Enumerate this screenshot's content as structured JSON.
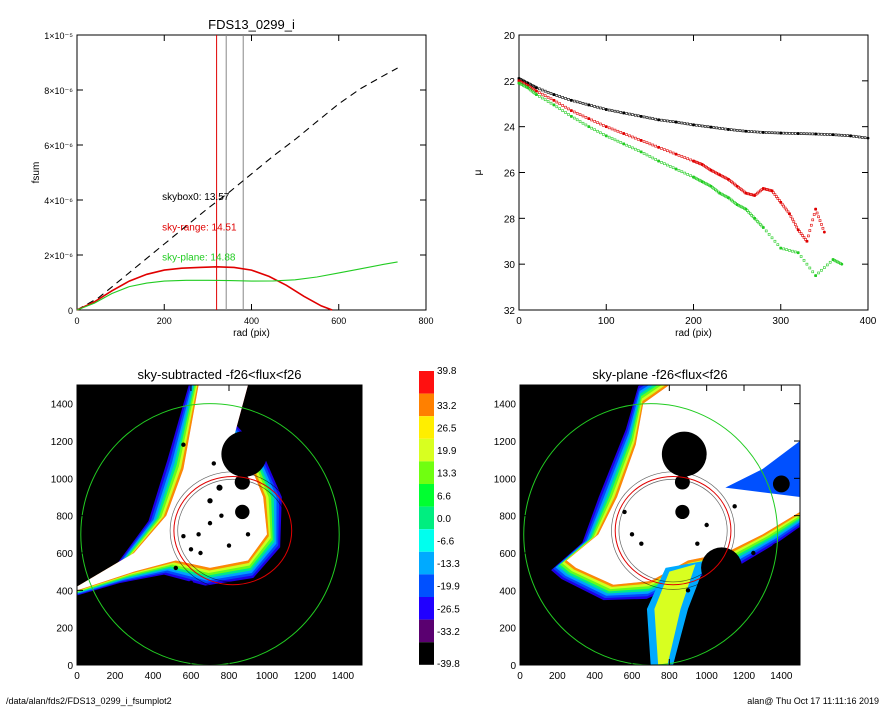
{
  "colors": {
    "black": "#000000",
    "red": "#e00000",
    "green": "#22cc22",
    "gray": "#888888",
    "dash": "#000000"
  },
  "footer": {
    "left": "/data/alan/fds2/FDS13_0299_i_fsumplot2",
    "right": "alan@  Thu Oct 17 11:11:16 2019"
  },
  "chart_data": [
    {
      "type": "line",
      "title": "FDS13_0299_i",
      "xlabel": "rad (pix)",
      "ylabel": "fsum",
      "xlim": [
        0,
        800
      ],
      "ylim": [
        0,
        1e-05
      ],
      "x_ticks": [
        "0",
        "200",
        "400",
        "600",
        "800"
      ],
      "y_ticks": [
        "0",
        "2×10⁻⁶",
        "4×10⁻⁶",
        "6×10⁻⁶",
        "8×10⁻⁶",
        "1×10⁻⁵"
      ],
      "y_tick_values": [
        0,
        2e-06,
        4e-06,
        6e-06,
        8e-06,
        1e-05
      ],
      "x_tick_values": [
        0,
        200,
        400,
        600,
        800
      ],
      "vlines": [
        {
          "x": 320,
          "color": "red"
        },
        {
          "x": 342,
          "color": "gray"
        },
        {
          "x": 381,
          "color": "gray"
        }
      ],
      "annotations": [
        {
          "text": "skybox0: 13.57",
          "color": "black",
          "x": 195,
          "y": 4e-06
        },
        {
          "text": "sky-range: 14.51",
          "color": "red",
          "x": 195,
          "y": 2.9e-06
        },
        {
          "text": "sky-plane: 14.88",
          "color": "green",
          "x": 195,
          "y": 1.8e-06
        }
      ],
      "series": [
        {
          "style": "dashed",
          "color": "black",
          "x": [
            0,
            50,
            100,
            150,
            200,
            250,
            300,
            350,
            400,
            450,
            500,
            550,
            600,
            650,
            700,
            735
          ],
          "y": [
            0,
            4.5e-07,
            1.1e-06,
            1.75e-06,
            2.4e-06,
            3.05e-06,
            3.7e-06,
            4.3e-06,
            4.95e-06,
            5.6e-06,
            6.2e-06,
            6.85e-06,
            7.5e-06,
            8.05e-06,
            8.5e-06,
            8.8e-06
          ]
        },
        {
          "style": "solid",
          "color": "red",
          "x": [
            0,
            40,
            80,
            120,
            160,
            200,
            240,
            280,
            320,
            360,
            400,
            440,
            480,
            520,
            560,
            585
          ],
          "y": [
            0,
            3e-07,
            7e-07,
            1.05e-06,
            1.3e-06,
            1.45e-06,
            1.52e-06,
            1.55e-06,
            1.57e-06,
            1.55e-06,
            1.45e-06,
            1.22e-06,
            9e-07,
            5e-07,
            1.5e-07,
            0
          ]
        },
        {
          "style": "solid",
          "color": "green",
          "x": [
            0,
            40,
            80,
            120,
            160,
            200,
            250,
            300,
            350,
            400,
            450,
            500,
            550,
            600,
            650,
            700,
            735
          ],
          "y": [
            0,
            2.5e-07,
            6e-07,
            8.5e-07,
            9.8e-07,
            1.05e-06,
            1.08e-06,
            1.08e-06,
            1.07e-06,
            1.05e-06,
            1.06e-06,
            1.1e-06,
            1.2e-06,
            1.35e-06,
            1.5e-06,
            1.65e-06,
            1.75e-06
          ]
        }
      ]
    },
    {
      "type": "scatter",
      "xlabel": "rad (pix)",
      "ylabel": "μ",
      "xlim": [
        0,
        400
      ],
      "ylim": [
        32,
        20
      ],
      "x_ticks": [
        "0",
        "100",
        "200",
        "300",
        "400"
      ],
      "y_ticks": [
        "20",
        "22",
        "24",
        "26",
        "28",
        "30",
        "32"
      ],
      "x_tick_values": [
        0,
        100,
        200,
        300,
        400
      ],
      "y_tick_values": [
        20,
        22,
        24,
        26,
        28,
        30,
        32
      ],
      "series": [
        {
          "color": "black",
          "x": [
            0,
            10,
            20,
            40,
            60,
            80,
            100,
            120,
            140,
            160,
            180,
            200,
            220,
            240,
            260,
            280,
            300,
            320,
            340,
            360,
            380,
            400
          ],
          "y": [
            21.9,
            22.1,
            22.3,
            22.6,
            22.85,
            23.05,
            23.25,
            23.4,
            23.55,
            23.7,
            23.8,
            23.92,
            24.02,
            24.12,
            24.2,
            24.25,
            24.28,
            24.3,
            24.32,
            24.35,
            24.4,
            24.5
          ]
        },
        {
          "color": "red",
          "x": [
            0,
            10,
            20,
            40,
            60,
            80,
            100,
            120,
            140,
            160,
            180,
            200,
            210,
            220,
            230,
            240,
            250,
            260,
            270,
            280,
            290,
            300,
            310,
            320,
            330,
            340,
            350
          ],
          "y": [
            22.0,
            22.2,
            22.45,
            22.85,
            23.3,
            23.65,
            24.0,
            24.3,
            24.6,
            24.9,
            25.2,
            25.5,
            25.65,
            25.9,
            26.1,
            26.3,
            26.6,
            26.9,
            27.0,
            26.7,
            26.8,
            27.3,
            27.8,
            28.5,
            29.0,
            27.6,
            28.6
          ]
        },
        {
          "color": "green",
          "x": [
            0,
            10,
            20,
            40,
            60,
            80,
            100,
            120,
            140,
            160,
            180,
            200,
            210,
            220,
            230,
            240,
            250,
            260,
            270,
            280,
            300,
            320,
            340,
            360,
            370
          ],
          "y": [
            22.1,
            22.3,
            22.6,
            23.05,
            23.55,
            24.0,
            24.4,
            24.75,
            25.1,
            25.5,
            25.85,
            26.2,
            26.4,
            26.6,
            26.9,
            27.1,
            27.4,
            27.6,
            28.0,
            28.4,
            29.3,
            29.5,
            30.5,
            29.8,
            30.0
          ]
        }
      ]
    },
    {
      "type": "heatmap",
      "title": "sky-subtracted -f26<flux<f26",
      "xlim": [
        0,
        1500
      ],
      "ylim": [
        0,
        1500
      ],
      "x_ticks": [
        "0",
        "200",
        "400",
        "600",
        "800",
        "1000",
        "1200",
        "1400"
      ],
      "y_ticks": [
        "0",
        "200",
        "400",
        "600",
        "800",
        "1000",
        "1200",
        "1400"
      ],
      "x_tick_values": [
        0,
        200,
        400,
        600,
        800,
        1000,
        1200,
        1400
      ],
      "y_tick_values": [
        0,
        200,
        400,
        600,
        800,
        1000,
        1200,
        1400
      ],
      "ellipses": [
        {
          "cx": 700,
          "cy": 700,
          "rx": 680,
          "ry": 700,
          "color": "green"
        },
        {
          "cx": 820,
          "cy": 720,
          "rx": 310,
          "ry": 290,
          "color": "red"
        }
      ],
      "mask_circles": [
        {
          "x": 880,
          "y": 1130,
          "r": 120
        },
        {
          "x": 870,
          "y": 980,
          "r": 40
        },
        {
          "x": 870,
          "y": 820,
          "r": 38
        },
        {
          "x": 750,
          "y": 950,
          "r": 16
        },
        {
          "x": 700,
          "y": 880,
          "r": 14
        }
      ]
    },
    {
      "type": "heatmap",
      "title": "sky-plane -f26<flux<f26",
      "xlim": [
        0,
        1500
      ],
      "ylim": [
        0,
        1500
      ],
      "x_ticks": [
        "0",
        "200",
        "400",
        "600",
        "800",
        "1000",
        "1200",
        "1400"
      ],
      "y_ticks": [
        "0",
        "200",
        "400",
        "600",
        "800",
        "1000",
        "1200",
        "1400"
      ],
      "x_tick_values": [
        0,
        200,
        400,
        600,
        800,
        1000,
        1200,
        1400
      ],
      "y_tick_values": [
        0,
        200,
        400,
        600,
        800,
        1000,
        1200,
        1400
      ],
      "ellipses": [
        {
          "cx": 700,
          "cy": 700,
          "rx": 680,
          "ry": 700,
          "color": "green"
        },
        {
          "cx": 820,
          "cy": 720,
          "rx": 310,
          "ry": 290,
          "color": "red"
        }
      ],
      "mask_circles": [
        {
          "x": 880,
          "y": 1130,
          "r": 120
        },
        {
          "x": 870,
          "y": 980,
          "r": 40
        },
        {
          "x": 870,
          "y": 820,
          "r": 38
        },
        {
          "x": 1080,
          "y": 520,
          "r": 110
        },
        {
          "x": 1370,
          "y": 310,
          "r": 55
        },
        {
          "x": 1400,
          "y": 970,
          "r": 45
        },
        {
          "x": 1380,
          "y": 620,
          "r": 35
        }
      ]
    }
  ],
  "colorbar": {
    "labels": [
      "39.8",
      "33.2",
      "26.5",
      "19.9",
      "13.3",
      "6.6",
      "0.0",
      "-6.6",
      "-13.3",
      "-19.9",
      "-26.5",
      "-33.2",
      "-39.8"
    ],
    "colors": [
      "#ff1010",
      "#ff8000",
      "#ffee00",
      "#d8ff20",
      "#70ff10",
      "#00ff30",
      "#00ee80",
      "#00ffee",
      "#00aaff",
      "#0050ff",
      "#2000ff",
      "#5a0070",
      "#000000"
    ]
  }
}
